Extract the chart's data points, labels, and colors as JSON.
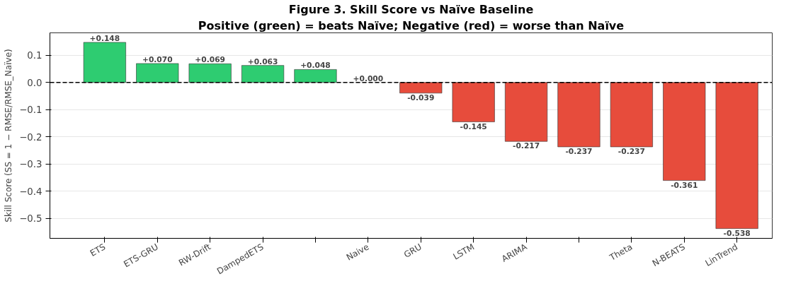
{
  "chart_data": {
    "type": "bar",
    "title": "Figure 3. Skill Score vs Naïve Baseline",
    "subtitle": "Positive (green) = beats Naïve; Negative (red) = worse than Naïve",
    "ylabel": "Skill Score (SS = 1 − RMSE/RMSE_Naïve)",
    "categories": [
      "ETS",
      "ETS-GRU",
      "RW-Drift",
      "DampedETS",
      null,
      "Naive",
      "GRU",
      "LSTM",
      "ARIMA",
      null,
      "Theta",
      "N-BEATS",
      "LinTrend"
    ],
    "values": [
      0.148,
      0.07,
      0.069,
      0.063,
      0.048,
      0.0,
      -0.039,
      -0.145,
      -0.217,
      -0.237,
      -0.237,
      -0.361,
      -0.538
    ],
    "value_labels": [
      "+0.148",
      "+0.070",
      "+0.069",
      "+0.063",
      "+0.048",
      "+0.000",
      "-0.039",
      "-0.145",
      "-0.217",
      "-0.237",
      "-0.237",
      "-0.361",
      "-0.538"
    ],
    "colors": [
      "#2ecc71",
      "#2ecc71",
      "#2ecc71",
      "#2ecc71",
      "#2ecc71",
      null,
      "#e74c3c",
      "#e74c3c",
      "#e74c3c",
      "#e74c3c",
      "#e74c3c",
      "#e74c3c",
      "#e74c3c"
    ],
    "ylim": [
      -0.574,
      0.183
    ],
    "yticks": [
      {
        "value": -0.5,
        "label": "−0.5"
      },
      {
        "value": -0.4,
        "label": "−0.4"
      },
      {
        "value": -0.3,
        "label": "−0.3"
      },
      {
        "value": -0.2,
        "label": "−0.2"
      },
      {
        "value": -0.1,
        "label": "−0.1"
      },
      {
        "value": 0.0,
        "label": "0.0"
      },
      {
        "value": 0.1,
        "label": "0.1"
      }
    ],
    "ref_lines": [
      {
        "axis": "y",
        "value": 0,
        "label": null,
        "color": "#000000",
        "line_style": "dashed"
      }
    ],
    "grid": "y"
  }
}
